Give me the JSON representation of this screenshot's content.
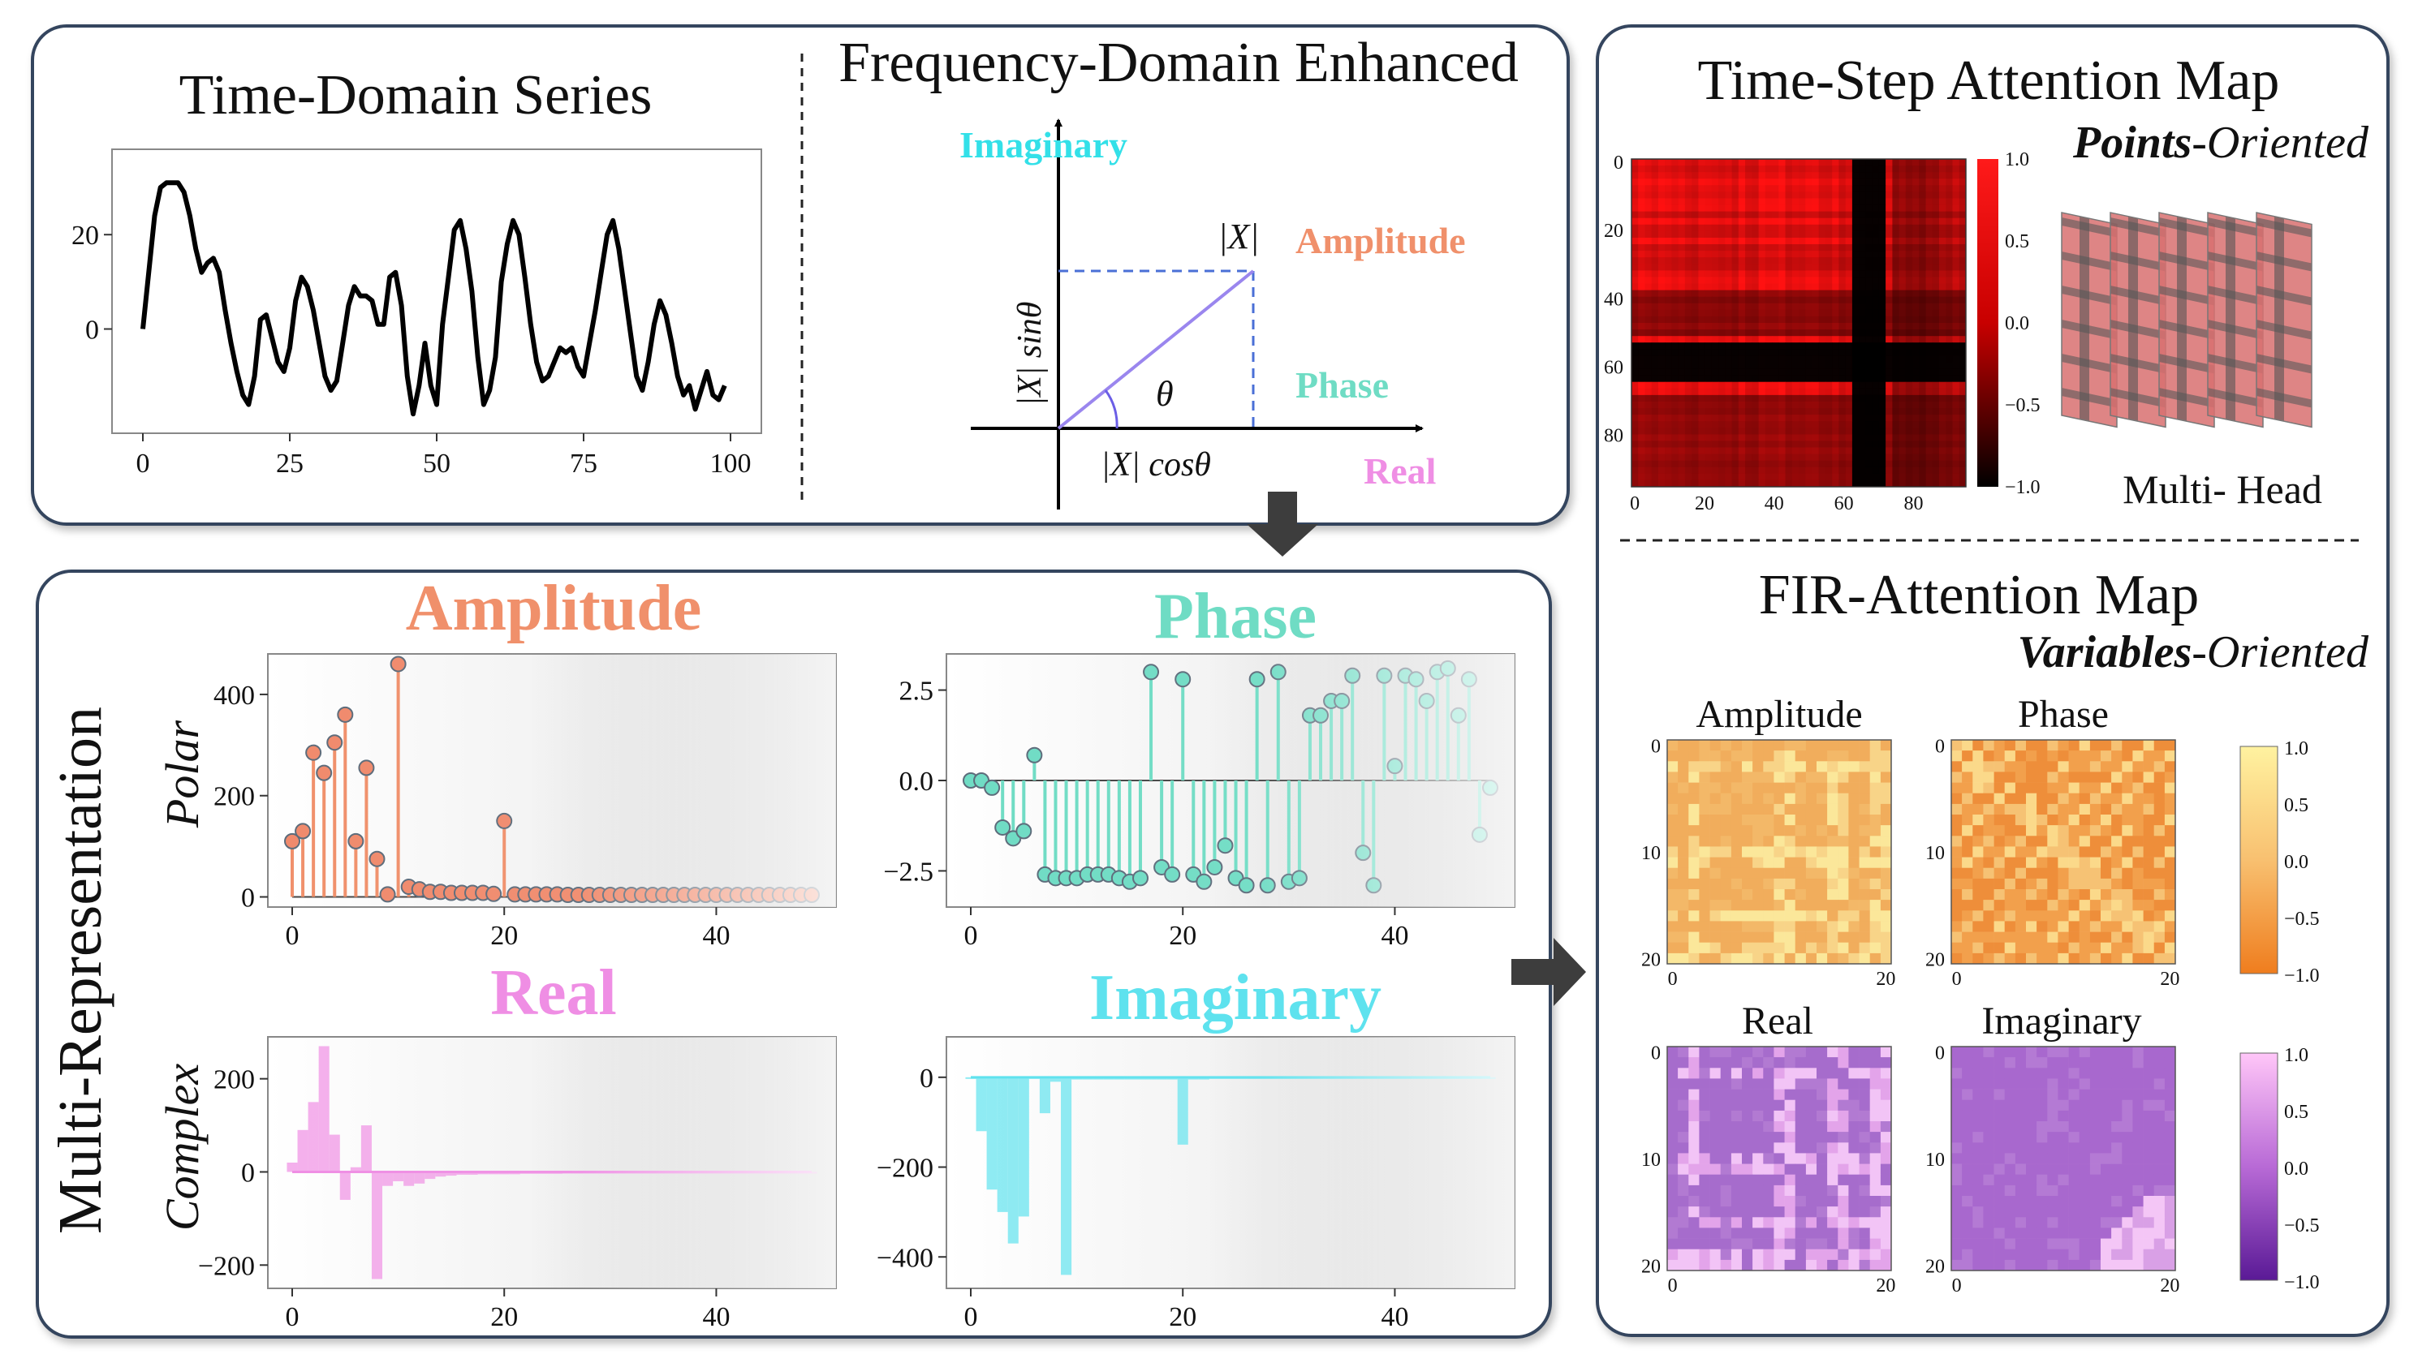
{
  "panels": {
    "time_domain": {
      "title": "Time-Domain Series"
    },
    "freq_domain": {
      "title": "Frequency-Domain Enhanced",
      "imaginary": "Imaginary",
      "amplitude": "Amplitude",
      "phase": "Phase",
      "real": "Real",
      "x_abs": "|X|",
      "sin_label": "|X| sinθ",
      "cos_label": "|X| cosθ",
      "theta": "θ"
    },
    "multi": {
      "side_label": "Multi-Representation",
      "polar": "Polar",
      "complex": "Complex",
      "titles": {
        "amplitude": "Amplitude",
        "phase": "Phase",
        "real": "Real",
        "imaginary": "Imaginary"
      }
    },
    "attention": {
      "title": "Time-Step Attention Map",
      "subtitle_bold": "Points",
      "subtitle_rest": "-Oriented",
      "multi_head": "Multi- Head",
      "fir_title": "FIR-Attention Map",
      "fir_subtitle_bold": "Variables",
      "fir_subtitle_rest": "-Oriented",
      "maps": {
        "amplitude": "Amplitude",
        "phase": "Phase",
        "real": "Real",
        "imaginary": "Imaginary"
      }
    }
  },
  "colors": {
    "amplitude": "#f0906b",
    "phase": "#6fdcc4",
    "real": "#ef8ee4",
    "imaginary": "#5ee2ee",
    "imag_label": "#33e0e8",
    "vector": "#9a86ee",
    "dashed": "#4a6fd6",
    "border": "#34455e"
  },
  "chart_data": [
    {
      "type": "line",
      "title": "Time-Domain Series",
      "x": [
        0,
        2,
        3,
        4,
        5,
        6,
        7,
        8,
        9,
        10,
        11,
        12,
        13,
        14,
        15,
        16,
        17,
        18,
        19,
        20,
        21,
        22,
        23,
        24,
        25,
        26,
        27,
        28,
        29,
        30,
        31,
        32,
        33,
        34,
        35,
        36,
        37,
        38,
        39,
        40,
        41,
        42,
        43,
        44,
        45,
        46,
        47,
        48,
        49,
        50,
        51,
        52,
        53,
        54,
        55,
        56,
        57,
        58,
        59,
        60,
        61,
        62,
        63,
        64,
        65,
        66,
        67,
        68,
        69,
        70,
        71,
        72,
        73,
        74,
        75,
        76,
        77,
        78,
        79,
        80,
        81,
        82,
        83,
        84,
        85,
        86,
        87,
        88,
        89,
        90,
        91,
        92,
        93,
        94,
        95,
        96,
        97,
        98,
        99
      ],
      "y": [
        0,
        24,
        30,
        31,
        31,
        31,
        29,
        24,
        17,
        12,
        14,
        15,
        12,
        4,
        -3,
        -9,
        -14,
        -16,
        -10,
        2,
        3,
        -2,
        -7,
        -9,
        -4,
        6,
        11,
        9,
        4,
        -3,
        -10,
        -13,
        -11,
        -3,
        5,
        9,
        7,
        7,
        6,
        1,
        1,
        11,
        12,
        5,
        -10,
        -18,
        -12,
        -3,
        -12,
        -16,
        1,
        11,
        21,
        23,
        17,
        8,
        -6,
        -16,
        -13,
        -6,
        10,
        18,
        23,
        20,
        11,
        1,
        -7,
        -11,
        -10,
        -7,
        -4,
        -5,
        -4,
        -8,
        -10,
        -3,
        4,
        12,
        20,
        23,
        17,
        8,
        -1,
        -10,
        -13,
        -7,
        1,
        6,
        3,
        -3,
        -10,
        -14,
        -12,
        -17,
        -13,
        -9,
        -14,
        -15,
        -12
      ],
      "xticks": [
        "0",
        "25",
        "50",
        "75",
        "100"
      ],
      "yticks": [
        "20",
        "0"
      ],
      "xlim": [
        0,
        100
      ],
      "ylim": [
        -19,
        35
      ]
    },
    {
      "type": "bar",
      "title": "Amplitude",
      "ylabel": "Polar",
      "values": [
        110,
        130,
        285,
        245,
        305,
        360,
        110,
        255,
        75,
        5,
        460,
        20,
        15,
        10,
        10,
        8,
        8,
        8,
        8,
        6,
        150,
        5,
        5,
        5,
        5,
        5,
        4,
        4,
        4,
        4,
        4,
        4,
        4,
        4,
        4,
        4,
        4,
        4,
        4,
        4,
        4,
        4,
        4,
        4,
        4,
        4,
        4,
        4,
        4,
        4
      ],
      "xticks": [
        "0",
        "20",
        "40"
      ],
      "yticks": [
        "400",
        "200",
        "0"
      ],
      "ylim": [
        -20,
        480
      ]
    },
    {
      "type": "bar",
      "title": "Phase",
      "values": [
        0,
        0,
        -0.2,
        -1.3,
        -1.6,
        -1.4,
        0.7,
        -2.6,
        -2.7,
        -2.7,
        -2.7,
        -2.6,
        -2.6,
        -2.6,
        -2.7,
        -2.8,
        -2.7,
        3.0,
        -2.4,
        -2.6,
        2.8,
        -2.6,
        -2.8,
        -2.4,
        -1.8,
        -2.7,
        -2.9,
        2.8,
        -2.9,
        3.0,
        -2.8,
        -2.7,
        1.8,
        1.8,
        2.2,
        2.2,
        2.9,
        -2.0,
        -2.9,
        2.9,
        0.4,
        2.9,
        2.8,
        2.2,
        3.0,
        3.1,
        1.8,
        2.8,
        -1.5,
        -0.2
      ],
      "xticks": [
        "0",
        "20",
        "40"
      ],
      "yticks": [
        "2.5",
        "0.0",
        "−2.5"
      ],
      "ylim": [
        -3.5,
        3.5
      ]
    },
    {
      "type": "bar",
      "title": "Real",
      "ylabel": "Complex",
      "values": [
        20,
        90,
        150,
        270,
        80,
        -60,
        10,
        100,
        -230,
        -30,
        -20,
        -30,
        -25,
        -15,
        -10,
        -8,
        -6,
        -6,
        -5,
        -5,
        -5,
        -5,
        -4,
        -4,
        -4,
        -4,
        -3,
        -3,
        -3,
        -3,
        -3,
        -3,
        -3,
        -3,
        -3,
        -3,
        -3,
        -3,
        -3,
        -3,
        -3,
        -3,
        -3,
        -3,
        -3,
        -3,
        -3,
        -3,
        -3,
        -3
      ],
      "xticks": [
        "0",
        "20",
        "40"
      ],
      "yticks": [
        "200",
        "0",
        "−200"
      ],
      "ylim": [
        -250,
        290
      ]
    },
    {
      "type": "bar",
      "title": "Imaginary",
      "values": [
        0,
        -120,
        -250,
        -300,
        -370,
        -310,
        0,
        -80,
        -10,
        -440,
        -5,
        -5,
        -5,
        -5,
        -5,
        -5,
        -5,
        -5,
        -5,
        -5,
        -150,
        -5,
        -5,
        -3,
        -3,
        -3,
        -3,
        -3,
        -3,
        -3,
        -3,
        -3,
        -3,
        -3,
        -3,
        -3,
        -3,
        -3,
        -3,
        -3,
        -3,
        -3,
        -3,
        -3,
        -3,
        -3,
        -3,
        -3,
        -3,
        -3
      ],
      "xticks": [
        "0",
        "20",
        "40"
      ],
      "yticks": [
        "0",
        "−200",
        "−400"
      ],
      "ylim": [
        -470,
        90
      ]
    },
    {
      "type": "heatmap",
      "title": "Time-Step Attention Map",
      "xticks": [
        "0",
        "20",
        "40",
        "60",
        "80"
      ],
      "yticks": [
        "0",
        "20",
        "40",
        "60",
        "80"
      ],
      "colorbar_ticks": [
        "1.0",
        "0.5",
        "0.0",
        "−0.5",
        "−1.0"
      ]
    },
    {
      "type": "heatmap",
      "title": "FIR-Attention Map",
      "panels": [
        "Amplitude",
        "Phase",
        "Real",
        "Imaginary"
      ],
      "xticks": [
        "0",
        "20"
      ],
      "yticks": [
        "0",
        "10",
        "20"
      ],
      "colorbar_ticks": [
        "1.0",
        "0.5",
        "0.0",
        "−0.5",
        "−1.0"
      ]
    }
  ]
}
